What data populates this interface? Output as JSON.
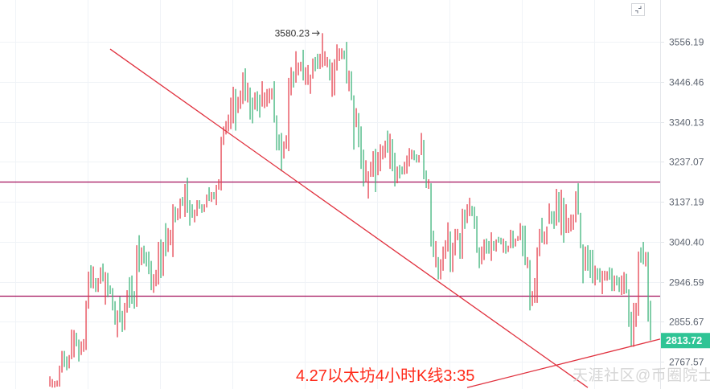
{
  "chart_data": {
    "type": "candlestick",
    "y_scale": "log",
    "ylim": [
      2700,
      3600
    ],
    "y_ticks": [
      "3556.19",
      "3446.46",
      "3340.13",
      "3237.07",
      "3137.19",
      "3040.40",
      "2946.59",
      "2855.67",
      "2767.57"
    ],
    "grid": true,
    "candle_format": [
      "high",
      "low",
      "color"
    ],
    "colors": {
      "r": "#e5434f",
      "g": "#3fb57c",
      "last_price_bg": "#2fc495",
      "hline": "#a3105c",
      "trendline": "#e0303d"
    },
    "candles": [
      [
        2736,
        2714,
        "r"
      ],
      [
        2730,
        2712,
        "r"
      ],
      [
        2726,
        2712,
        "r"
      ],
      [
        2727,
        2714,
        "r"
      ],
      [
        2759,
        2714,
        "r"
      ],
      [
        2791,
        2744,
        "r"
      ],
      [
        2791,
        2756,
        "g"
      ],
      [
        2779,
        2749,
        "g"
      ],
      [
        2782,
        2753,
        "r"
      ],
      [
        2838,
        2773,
        "r"
      ],
      [
        2837,
        2777,
        "r"
      ],
      [
        2831,
        2801,
        "g"
      ],
      [
        2816,
        2768,
        "g"
      ],
      [
        2812,
        2782,
        "r"
      ],
      [
        2817,
        2789,
        "r"
      ],
      [
        2903,
        2793,
        "r"
      ],
      [
        2970,
        2885,
        "r"
      ],
      [
        2985,
        2932,
        "g"
      ],
      [
        2982,
        2931,
        "r"
      ],
      [
        2955,
        2923,
        "g"
      ],
      [
        2955,
        2923,
        "r"
      ],
      [
        2980,
        2942,
        "r"
      ],
      [
        2989,
        2947,
        "g"
      ],
      [
        2969,
        2894,
        "r"
      ],
      [
        2967,
        2911,
        "g"
      ],
      [
        2938,
        2918,
        "g"
      ],
      [
        2932,
        2881,
        "g"
      ],
      [
        2902,
        2849,
        "g"
      ],
      [
        2881,
        2821,
        "r"
      ],
      [
        2912,
        2854,
        "g"
      ],
      [
        2880,
        2833,
        "g"
      ],
      [
        2898,
        2837,
        "r"
      ],
      [
        2927,
        2876,
        "r"
      ],
      [
        2957,
        2887,
        "g"
      ],
      [
        2961,
        2896,
        "g"
      ],
      [
        2925,
        2885,
        "g"
      ],
      [
        3032,
        2889,
        "r"
      ],
      [
        3056,
        2969,
        "g"
      ],
      [
        3027,
        2985,
        "r"
      ],
      [
        3031,
        2989,
        "g"
      ],
      [
        3016,
        2982,
        "g"
      ],
      [
        3017,
        2964,
        "g"
      ],
      [
        2995,
        2927,
        "g"
      ],
      [
        2964,
        2921,
        "r"
      ],
      [
        2974,
        2936,
        "r"
      ],
      [
        3040,
        2940,
        "r"
      ],
      [
        3046,
        2955,
        "g"
      ],
      [
        3040,
        2960,
        "r"
      ],
      [
        3085,
        3006,
        "g"
      ],
      [
        3073,
        3016,
        "r"
      ],
      [
        3069,
        3032,
        "r"
      ],
      [
        3131,
        3004,
        "r"
      ],
      [
        3125,
        3087,
        "g"
      ],
      [
        3121,
        3092,
        "r"
      ],
      [
        3145,
        3096,
        "r"
      ],
      [
        3149,
        3127,
        "g"
      ],
      [
        3181,
        3100,
        "r"
      ],
      [
        3197,
        3110,
        "g"
      ],
      [
        3141,
        3079,
        "g"
      ],
      [
        3131,
        3098,
        "g"
      ],
      [
        3118,
        3087,
        "r"
      ],
      [
        3141,
        3102,
        "r"
      ],
      [
        3141,
        3120,
        "g"
      ],
      [
        3131,
        3110,
        "g"
      ],
      [
        3131,
        3112,
        "r"
      ],
      [
        3155,
        3123,
        "r"
      ],
      [
        3173,
        3139,
        "g"
      ],
      [
        3161,
        3137,
        "r"
      ],
      [
        3161,
        3143,
        "g"
      ],
      [
        3179,
        3129,
        "r"
      ],
      [
        3193,
        3167,
        "r"
      ],
      [
        3301,
        3165,
        "r"
      ],
      [
        3328,
        3280,
        "r"
      ],
      [
        3342,
        3307,
        "r"
      ],
      [
        3359,
        3315,
        "r"
      ],
      [
        3404,
        3321,
        "r"
      ],
      [
        3433,
        3336,
        "r"
      ],
      [
        3427,
        3317,
        "g"
      ],
      [
        3406,
        3363,
        "r"
      ],
      [
        3423,
        3374,
        "r"
      ],
      [
        3472,
        3387,
        "r"
      ],
      [
        3483,
        3395,
        "g"
      ],
      [
        3444,
        3391,
        "r"
      ],
      [
        3431,
        3346,
        "g"
      ],
      [
        3404,
        3336,
        "g"
      ],
      [
        3418,
        3372,
        "r"
      ],
      [
        3421,
        3368,
        "g"
      ],
      [
        3412,
        3351,
        "g"
      ],
      [
        3448,
        3380,
        "r"
      ],
      [
        3418,
        3376,
        "r"
      ],
      [
        3427,
        3380,
        "r"
      ],
      [
        3429,
        3389,
        "r"
      ],
      [
        3429,
        3399,
        "r"
      ],
      [
        3448,
        3338,
        "g"
      ],
      [
        3357,
        3266,
        "g"
      ],
      [
        3307,
        3266,
        "g"
      ],
      [
        3311,
        3213,
        "g"
      ],
      [
        3289,
        3245,
        "r"
      ],
      [
        3305,
        3270,
        "r"
      ],
      [
        3457,
        3264,
        "r"
      ],
      [
        3486,
        3410,
        "r"
      ],
      [
        3475,
        3431,
        "g"
      ],
      [
        3530,
        3444,
        "r"
      ],
      [
        3499,
        3464,
        "r"
      ],
      [
        3501,
        3475,
        "r"
      ],
      [
        3534,
        3450,
        "g"
      ],
      [
        3486,
        3438,
        "r"
      ],
      [
        3492,
        3438,
        "r"
      ],
      [
        3466,
        3414,
        "r"
      ],
      [
        3510,
        3455,
        "r"
      ],
      [
        3514,
        3475,
        "g"
      ],
      [
        3523,
        3481,
        "g"
      ],
      [
        3523,
        3481,
        "r"
      ],
      [
        3580.23,
        3486,
        "r"
      ],
      [
        3530,
        3490,
        "r"
      ],
      [
        3514,
        3486,
        "r"
      ],
      [
        3508,
        3450,
        "g"
      ],
      [
        3499,
        3406,
        "r"
      ],
      [
        3508,
        3410,
        "r"
      ],
      [
        3549,
        3477,
        "r"
      ],
      [
        3538,
        3503,
        "r"
      ],
      [
        3538,
        3508,
        "r"
      ],
      [
        3532,
        3508,
        "g"
      ],
      [
        3556,
        3442,
        "g"
      ],
      [
        3477,
        3421,
        "r"
      ],
      [
        3475,
        3397,
        "g"
      ],
      [
        3410,
        3268,
        "g"
      ],
      [
        3376,
        3326,
        "r"
      ],
      [
        3363,
        3274,
        "g"
      ],
      [
        3328,
        3219,
        "g"
      ],
      [
        3268,
        3175,
        "g"
      ],
      [
        3241,
        3185,
        "r"
      ],
      [
        3213,
        3145,
        "r"
      ],
      [
        3237,
        3199,
        "r"
      ],
      [
        3264,
        3199,
        "r"
      ],
      [
        3270,
        3161,
        "g"
      ],
      [
        3262,
        3203,
        "r"
      ],
      [
        3282,
        3213,
        "r"
      ],
      [
        3278,
        3243,
        "r"
      ],
      [
        3291,
        3247,
        "r"
      ],
      [
        3317,
        3260,
        "g"
      ],
      [
        3309,
        3219,
        "r"
      ],
      [
        3295,
        3213,
        "g"
      ],
      [
        3260,
        3175,
        "g"
      ],
      [
        3225,
        3183,
        "r"
      ],
      [
        3229,
        3195,
        "g"
      ],
      [
        3225,
        3205,
        "g"
      ],
      [
        3237,
        3205,
        "r"
      ],
      [
        3253,
        3207,
        "r"
      ],
      [
        3272,
        3225,
        "r"
      ],
      [
        3268,
        3243,
        "r"
      ],
      [
        3266,
        3241,
        "g"
      ],
      [
        3256,
        3235,
        "g"
      ],
      [
        3254,
        3235,
        "r"
      ],
      [
        3311,
        3254,
        "r"
      ],
      [
        3293,
        3193,
        "g"
      ],
      [
        3215,
        3171,
        "g"
      ],
      [
        3193,
        3169,
        "r"
      ],
      [
        3183,
        3029,
        "g"
      ],
      [
        3067,
        3004,
        "g"
      ],
      [
        3042,
        2980,
        "r"
      ],
      [
        3004,
        2952,
        "g"
      ],
      [
        2999,
        2952,
        "r"
      ],
      [
        3029,
        2972,
        "r"
      ],
      [
        3044,
        3000,
        "r"
      ],
      [
        3087,
        3017,
        "r"
      ],
      [
        3065,
        2969,
        "g"
      ],
      [
        3038,
        2969,
        "r"
      ],
      [
        3071,
        3008,
        "r"
      ],
      [
        3071,
        3044,
        "r"
      ],
      [
        3061,
        3000,
        "g"
      ],
      [
        3120,
        3000,
        "r"
      ],
      [
        3118,
        3071,
        "g"
      ],
      [
        3131,
        3085,
        "r"
      ],
      [
        3147,
        3102,
        "r"
      ],
      [
        3127,
        3102,
        "g"
      ],
      [
        3125,
        3071,
        "g"
      ],
      [
        3102,
        3014,
        "g"
      ],
      [
        3027,
        2978,
        "g"
      ],
      [
        3029,
        2987,
        "r"
      ],
      [
        3046,
        2997,
        "r"
      ],
      [
        3048,
        3012,
        "g"
      ],
      [
        3042,
        3012,
        "g"
      ],
      [
        3063,
        2995,
        "r"
      ],
      [
        3042,
        3019,
        "g"
      ],
      [
        3046,
        3017,
        "r"
      ],
      [
        3052,
        3038,
        "g"
      ],
      [
        3050,
        3034,
        "g"
      ],
      [
        3048,
        3014,
        "r"
      ],
      [
        3042,
        3012,
        "g"
      ],
      [
        3031,
        3016,
        "r"
      ],
      [
        3069,
        3025,
        "r"
      ],
      [
        3067,
        3025,
        "g"
      ],
      [
        3048,
        3029,
        "r"
      ],
      [
        3054,
        3042,
        "r"
      ],
      [
        3085,
        3044,
        "r"
      ],
      [
        3079,
        3006,
        "g"
      ],
      [
        3079,
        2985,
        "g"
      ],
      [
        3004,
        2978,
        "r"
      ],
      [
        2997,
        2881,
        "g"
      ],
      [
        2925,
        2891,
        "r"
      ],
      [
        2955,
        2898,
        "r"
      ],
      [
        3027,
        2898,
        "r"
      ],
      [
        3071,
        3006,
        "r"
      ],
      [
        3098,
        3038,
        "g"
      ],
      [
        3065,
        3034,
        "r"
      ],
      [
        3077,
        3034,
        "r"
      ],
      [
        3133,
        3083,
        "r"
      ],
      [
        3114,
        3083,
        "g"
      ],
      [
        3114,
        3071,
        "g"
      ],
      [
        3169,
        3079,
        "r"
      ],
      [
        3161,
        3087,
        "g"
      ],
      [
        3167,
        3056,
        "r"
      ],
      [
        3147,
        3038,
        "g"
      ],
      [
        3131,
        3061,
        "r"
      ],
      [
        3098,
        3061,
        "r"
      ],
      [
        3106,
        3065,
        "r"
      ],
      [
        3106,
        3069,
        "r"
      ],
      [
        3163,
        3087,
        "r"
      ],
      [
        3183,
        3106,
        "g"
      ],
      [
        3110,
        3025,
        "g"
      ],
      [
        3034,
        2943,
        "g"
      ],
      [
        3029,
        2972,
        "r"
      ],
      [
        3032,
        2972,
        "g"
      ],
      [
        3021,
        2955,
        "g"
      ],
      [
        3021,
        2943,
        "g"
      ],
      [
        2984,
        2938,
        "r"
      ],
      [
        2978,
        2951,
        "g"
      ],
      [
        2978,
        2945,
        "g"
      ],
      [
        2972,
        2918,
        "r"
      ],
      [
        2972,
        2949,
        "r"
      ],
      [
        2971,
        2949,
        "r"
      ],
      [
        2980,
        2951,
        "g"
      ],
      [
        2978,
        2925,
        "g"
      ],
      [
        2961,
        2925,
        "r"
      ],
      [
        2961,
        2938,
        "g"
      ],
      [
        2957,
        2923,
        "g"
      ],
      [
        2961,
        2916,
        "r"
      ],
      [
        2969,
        2918,
        "r"
      ],
      [
        2965,
        2920,
        "g"
      ],
      [
        2929,
        2844,
        "g"
      ],
      [
        2878,
        2801,
        "g"
      ],
      [
        2898,
        2800,
        "r"
      ],
      [
        2898,
        2844,
        "r"
      ],
      [
        3017,
        2869,
        "r"
      ],
      [
        3027,
        2991,
        "g"
      ],
      [
        3040,
        2987,
        "g"
      ],
      [
        3016,
        2982,
        "r"
      ],
      [
        3016,
        2856,
        "g"
      ],
      [
        2903,
        2814,
        "g"
      ]
    ],
    "high_annotation": {
      "label": "3580.23",
      "price": 3580.23
    },
    "last_price": "2813.72",
    "horizontal_lines": [
      3187,
      2914
    ],
    "trend_lines": [
      {
        "from": [
          25,
          3536
        ],
        "to": [
          223,
          2712
        ]
      },
      {
        "from": [
          173,
          2712
        ],
        "to": [
          253,
          2817
        ]
      }
    ]
  },
  "caption": "4.27以太坊4小时K线3:35",
  "watermark": "天涯社区@币圈院士",
  "icons": {
    "collapse": "collapse-icon"
  }
}
